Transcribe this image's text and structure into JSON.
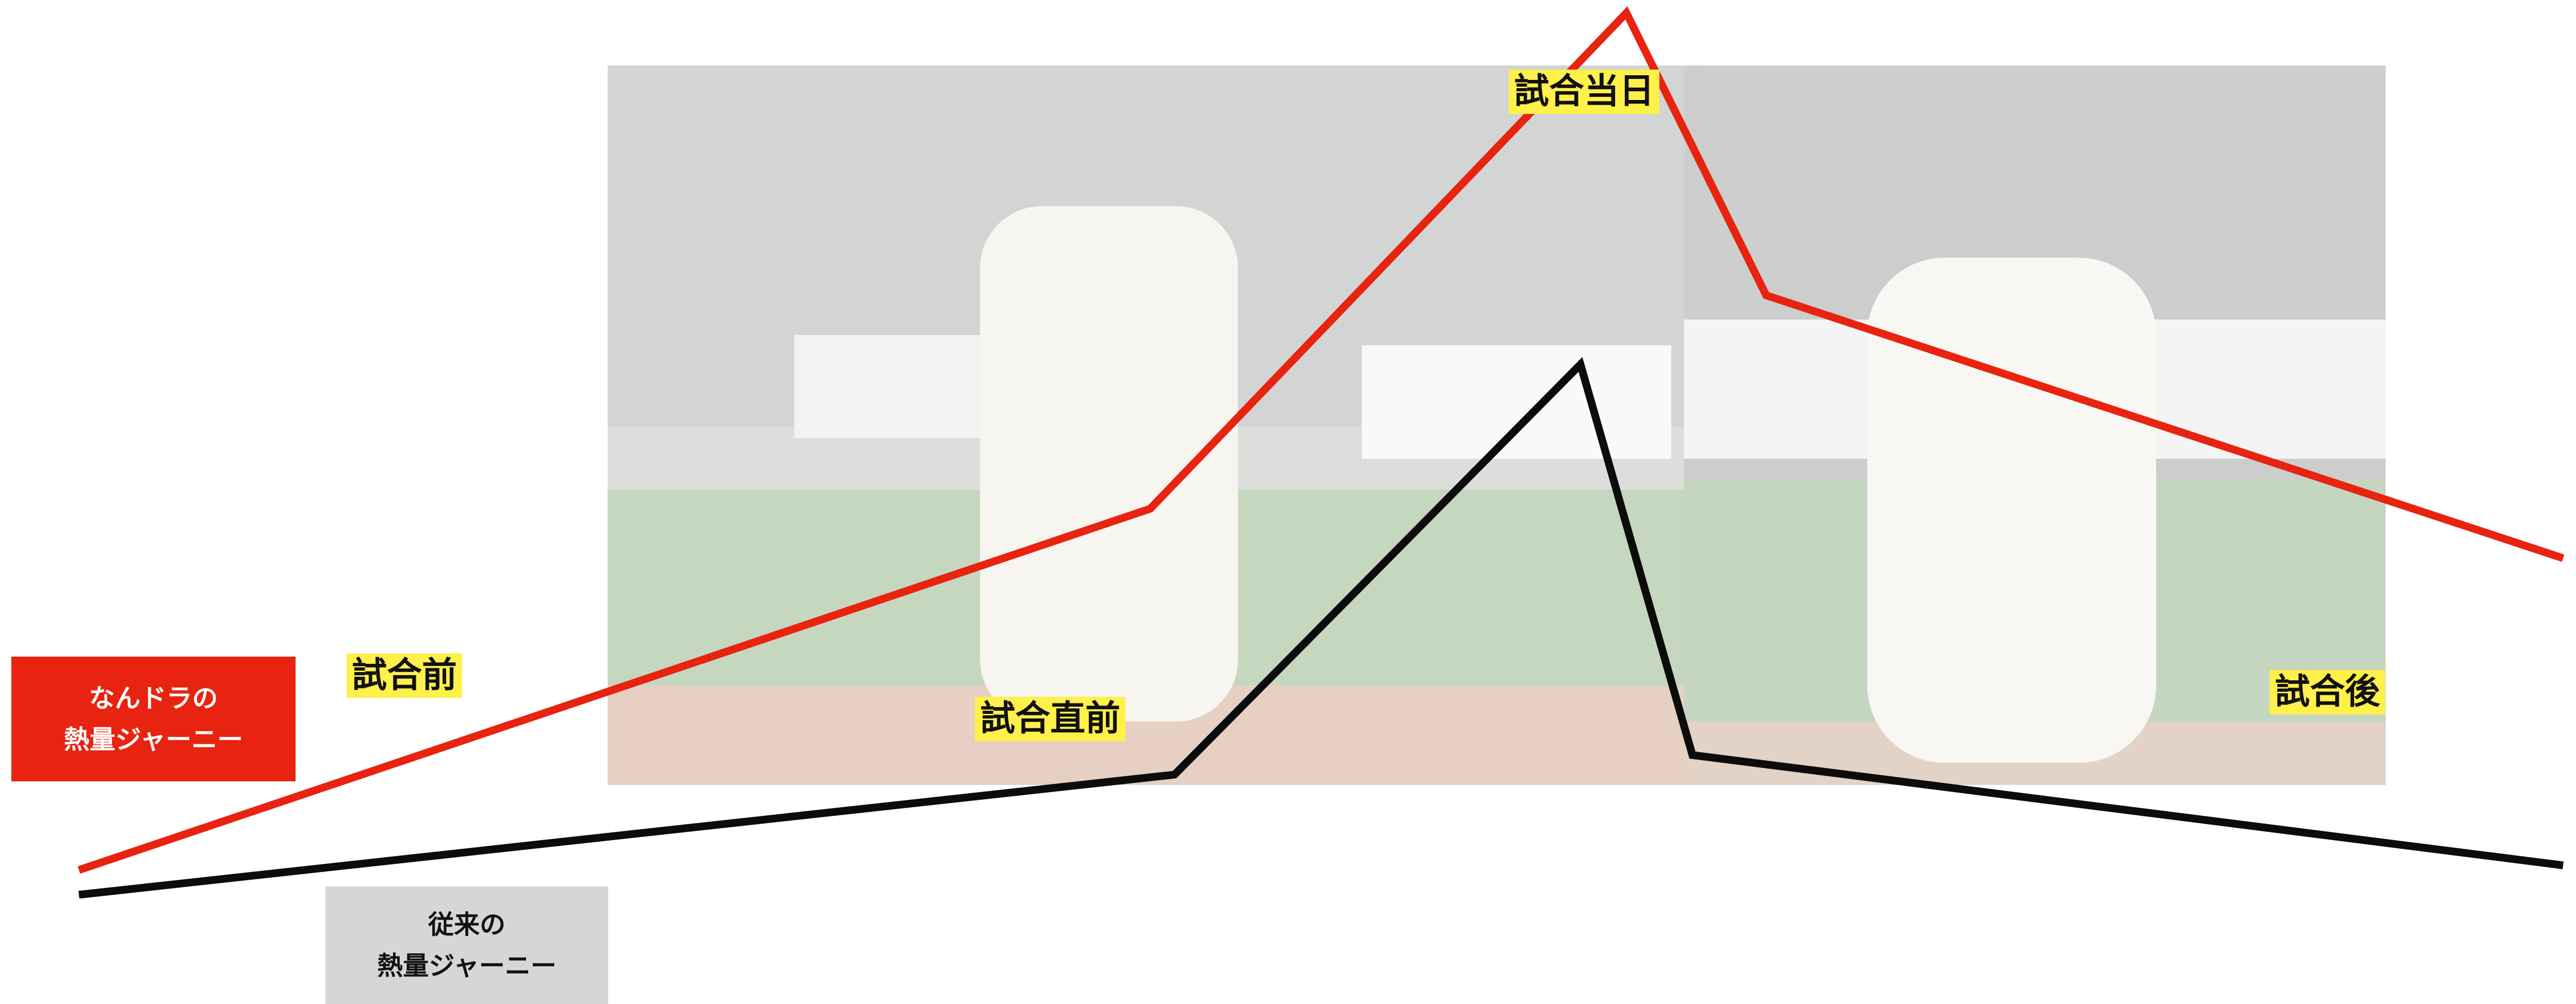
{
  "stages": [
    "試合前",
    "試合直前",
    "試合当日",
    "試合後"
  ],
  "journeys": [
    {
      "label_lines": [
        "なんドラの",
        "熱量ジャーニー"
      ]
    },
    {
      "label_lines": [
        "従来の",
        "熱量ジャーニー"
      ]
    }
  ]
}
